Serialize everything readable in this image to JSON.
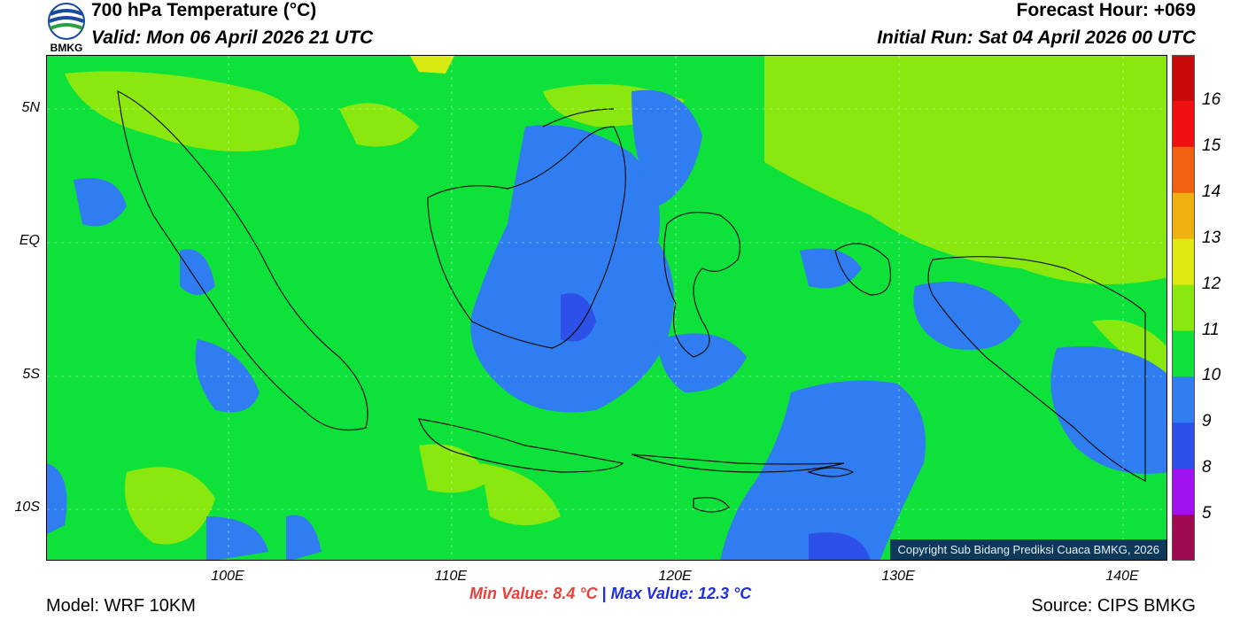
{
  "header": {
    "logo_text": "BMKG",
    "title": "700 hPa Temperature (°C)",
    "valid": "Valid: Mon 06 April 2026 21 UTC",
    "forecast_hour": "Forecast Hour: +069",
    "initial_run": "Initial Run: Sat 04 April 2026 00 UTC"
  },
  "map": {
    "lat_labels": [
      "5N",
      "EQ",
      "5S",
      "10S"
    ],
    "lon_labels": [
      "100E",
      "110E",
      "120E",
      "130E",
      "140E"
    ],
    "copyright": "Copyright Sub Bidang Prediksi Cuaca BMKG, 2026",
    "colors": {
      "t9": "#2f7df0",
      "t8": "#2d50e8",
      "t10": "#0ee23a",
      "t11": "#8ae80f",
      "t12": "#d8ea12",
      "ocean_dark": "#1f5fe0"
    }
  },
  "colorbar": {
    "labels": [
      "16",
      "15",
      "14",
      "13",
      "12",
      "11",
      "10",
      "9",
      "8",
      "5"
    ],
    "colors": [
      "#c80a0a",
      "#f01010",
      "#f06010",
      "#f0b010",
      "#e0e812",
      "#8ae80f",
      "#0ee23a",
      "#2f7df0",
      "#2d50e8",
      "#a010f0",
      "#a00a50"
    ]
  },
  "footer": {
    "min_value": "Min Value: 8.4 °C",
    "separator": "|",
    "max_value": "Max Value: 12.3 °C",
    "model": "Model: WRF 10KM",
    "source": "Source: CIPS BMKG"
  }
}
